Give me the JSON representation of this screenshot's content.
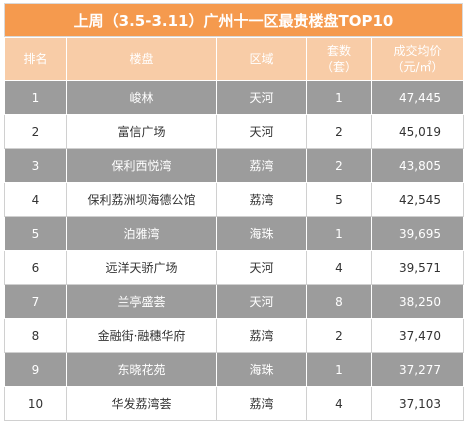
{
  "title": "上周（3.5-3.11）广州十一区最贵楼盘TOP10",
  "headers": {
    "rank": "排名",
    "name": "楼盘",
    "district": "区域",
    "sets_line1": "套数",
    "sets_line2": "（套）",
    "price_line1": "成交均价",
    "price_line2": "（元/㎡）"
  },
  "rows": [
    {
      "rank": "1",
      "name": "峻林",
      "district": "天河",
      "sets": "1",
      "price": "47,445"
    },
    {
      "rank": "2",
      "name": "富信广场",
      "district": "天河",
      "sets": "2",
      "price": "45,019"
    },
    {
      "rank": "3",
      "name": "保利西悦湾",
      "district": "荔湾",
      "sets": "2",
      "price": "43,805"
    },
    {
      "rank": "4",
      "name": "保利荔洲坝海德公馆",
      "district": "荔湾",
      "sets": "5",
      "price": "42,545"
    },
    {
      "rank": "5",
      "name": "泊雅湾",
      "district": "海珠",
      "sets": "1",
      "price": "39,695"
    },
    {
      "rank": "6",
      "name": "远洋天骄广场",
      "district": "天河",
      "sets": "4",
      "price": "39,571"
    },
    {
      "rank": "7",
      "name": "兰亭盛荟",
      "district": "天河",
      "sets": "8",
      "price": "38,250"
    },
    {
      "rank": "8",
      "name": "金融街·融穗华府",
      "district": "荔湾",
      "sets": "2",
      "price": "37,470"
    },
    {
      "rank": "9",
      "name": "东晓花苑",
      "district": "海珠",
      "sets": "1",
      "price": "37,277"
    },
    {
      "rank": "10",
      "name": "华发荔湾荟",
      "district": "荔湾",
      "sets": "4",
      "price": "37,103"
    }
  ]
}
